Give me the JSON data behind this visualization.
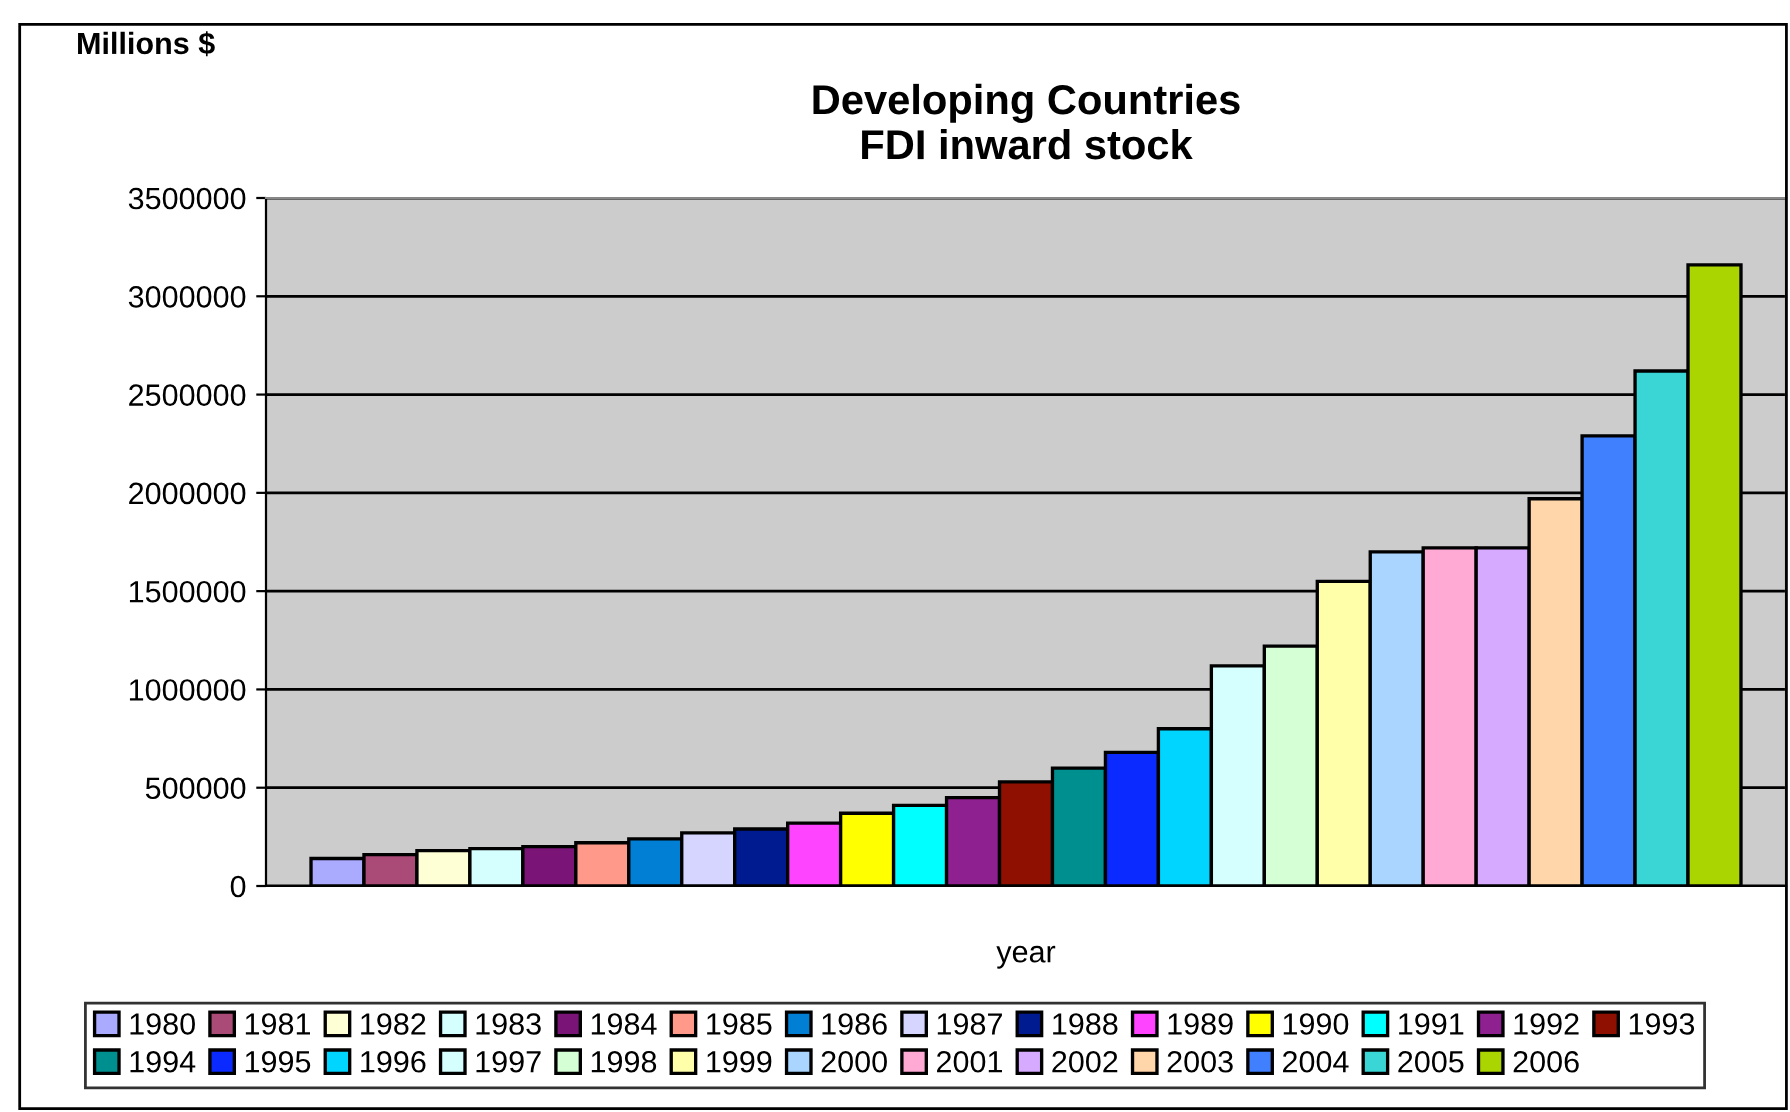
{
  "chart_data": {
    "type": "bar",
    "title": "Developing Countries\nFDI inward stock",
    "ylabel": "Millions $",
    "xlabel": "year",
    "categories": [
      null
    ],
    "series": [
      {
        "name": "1980",
        "color": "#aaaaff",
        "values": [
          140000
        ]
      },
      {
        "name": "1981",
        "color": "#aa4a77",
        "values": [
          160000
        ]
      },
      {
        "name": "1982",
        "color": "#ffffd5",
        "values": [
          180000
        ]
      },
      {
        "name": "1983",
        "color": "#d5ffff",
        "values": [
          190000
        ]
      },
      {
        "name": "1984",
        "color": "#7a1577",
        "values": [
          200000
        ]
      },
      {
        "name": "1985",
        "color": "#ff9a8a",
        "values": [
          220000
        ]
      },
      {
        "name": "1986",
        "color": "#007fd5",
        "values": [
          240000
        ]
      },
      {
        "name": "1987",
        "color": "#d5d5ff",
        "values": [
          270000
        ]
      },
      {
        "name": "1988",
        "color": "#001a8f",
        "values": [
          290000
        ]
      },
      {
        "name": "1989",
        "color": "#ff44ff",
        "values": [
          320000
        ]
      },
      {
        "name": "1990",
        "color": "#ffff00",
        "values": [
          370000
        ]
      },
      {
        "name": "1991",
        "color": "#00ffff",
        "values": [
          410000
        ]
      },
      {
        "name": "1992",
        "color": "#8f2090",
        "values": [
          450000
        ]
      },
      {
        "name": "1993",
        "color": "#8f1000",
        "values": [
          530000
        ]
      },
      {
        "name": "1994",
        "color": "#008f8f",
        "values": [
          600000
        ]
      },
      {
        "name": "1995",
        "color": "#0a2aff",
        "values": [
          680000
        ]
      },
      {
        "name": "1996",
        "color": "#00d5ff",
        "values": [
          800000
        ]
      },
      {
        "name": "1997",
        "color": "#d5ffff",
        "values": [
          1120000
        ]
      },
      {
        "name": "1998",
        "color": "#d5ffd5",
        "values": [
          1220000
        ]
      },
      {
        "name": "1999",
        "color": "#ffffaa",
        "values": [
          1550000
        ]
      },
      {
        "name": "2000",
        "color": "#aad5ff",
        "values": [
          1700000
        ]
      },
      {
        "name": "2001",
        "color": "#ffaad5",
        "values": [
          1720000
        ]
      },
      {
        "name": "2002",
        "color": "#d5aaff",
        "values": [
          1720000
        ]
      },
      {
        "name": "2003",
        "color": "#ffd5aa",
        "values": [
          1970000
        ]
      },
      {
        "name": "2004",
        "color": "#4080ff",
        "values": [
          2290000
        ]
      },
      {
        "name": "2005",
        "color": "#3ad5d5",
        "values": [
          2620000
        ]
      },
      {
        "name": "2006",
        "color": "#aad500",
        "values": [
          3160000
        ]
      }
    ],
    "ylim": [
      0,
      3500000
    ],
    "yticks": [
      0,
      500000,
      1000000,
      1500000,
      2000000,
      2500000,
      3000000,
      3500000
    ],
    "grid": "y",
    "legend": "bottom"
  }
}
